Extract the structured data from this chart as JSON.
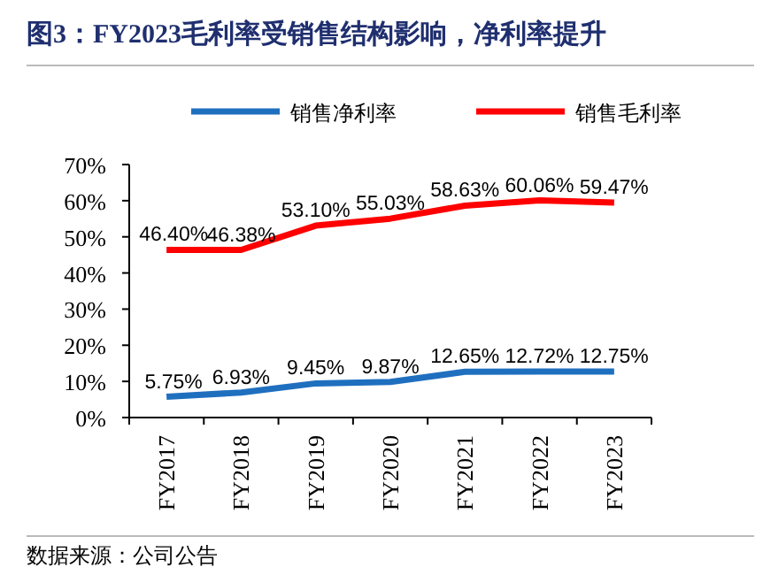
{
  "chart_data": {
    "type": "line",
    "title": "图3：FY2023毛利率受销售结构影响，净利率提升",
    "categories": [
      "FY2017",
      "FY2018",
      "FY2019",
      "FY2020",
      "FY2021",
      "FY2022",
      "FY2023"
    ],
    "series": [
      {
        "name": "销售净利率",
        "color": "#1f6fbf",
        "values": [
          5.75,
          6.93,
          9.45,
          9.87,
          12.65,
          12.72,
          12.75
        ],
        "value_labels": [
          "5.75%",
          "6.93%",
          "9.45%",
          "9.87%",
          "12.65%",
          "12.72%",
          "12.75%"
        ]
      },
      {
        "name": "销售毛利率",
        "color": "#ff0000",
        "values": [
          46.4,
          46.38,
          53.1,
          55.03,
          58.63,
          60.06,
          59.47
        ],
        "value_labels": [
          "46.40%",
          "46.38%",
          "53.10%",
          "55.03%",
          "58.63%",
          "60.06%",
          "59.47%"
        ]
      }
    ],
    "ylim": [
      0,
      70
    ],
    "yticks": [
      {
        "value": 0,
        "label": "0%"
      },
      {
        "value": 10,
        "label": "10%"
      },
      {
        "value": 20,
        "label": "20%"
      },
      {
        "value": 30,
        "label": "30%"
      },
      {
        "value": 40,
        "label": "40%"
      },
      {
        "value": 50,
        "label": "50%"
      },
      {
        "value": 60,
        "label": "60%"
      },
      {
        "value": 70,
        "label": "70%"
      }
    ],
    "legend": "top",
    "grid": false,
    "marker": "none",
    "line_style": "solid",
    "annotations": [
      "数据来源：公司公告"
    ]
  }
}
